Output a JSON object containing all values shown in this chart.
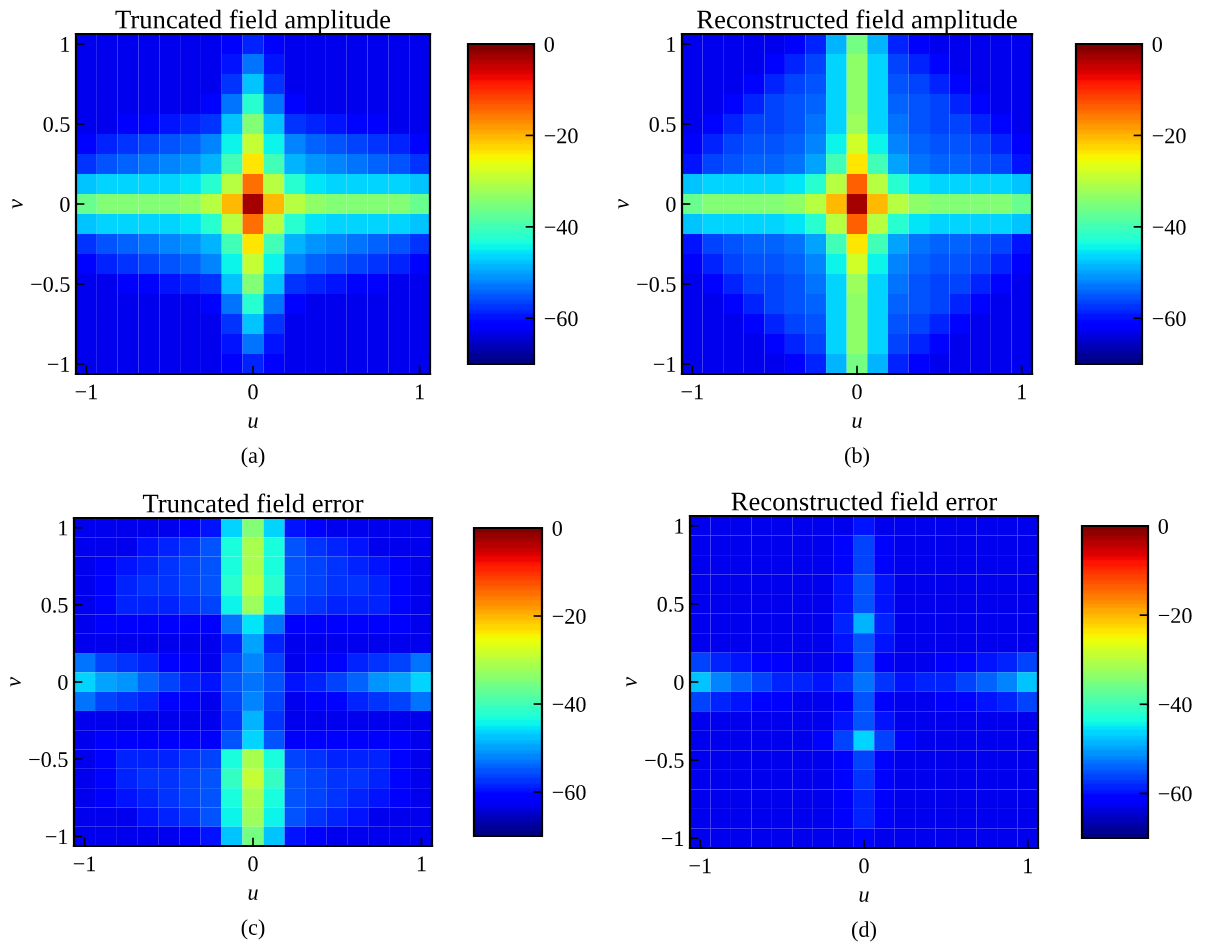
{
  "chart_data": [
    {
      "type": "heatmap",
      "title": "Truncated field amplitude",
      "xlabel": "u",
      "ylabel": "v",
      "annotations": [
        "(a)"
      ],
      "categories": [
        "−1",
        null,
        null,
        null,
        null,
        null,
        null,
        null,
        "0",
        null,
        null,
        null,
        null,
        null,
        null,
        null,
        "1"
      ],
      "y_categories": [
        "1",
        null,
        null,
        null,
        "0.5",
        null,
        null,
        null,
        "0",
        null,
        null,
        null,
        "−0.5",
        null,
        null,
        null,
        "−1"
      ],
      "clim": [
        -70,
        0
      ],
      "cticks": [
        0,
        -20,
        -40,
        -60
      ],
      "cells": [
        [
          -63,
          -63,
          -63,
          -63,
          -63,
          -63,
          -63,
          -62,
          -59,
          -62,
          -63,
          -63,
          -63,
          -63,
          -63,
          -63,
          -63
        ],
        [
          -63,
          -63,
          -63,
          -63,
          -63,
          -63,
          -63,
          -60,
          -53,
          -60,
          -63,
          -63,
          -63,
          -63,
          -63,
          -63,
          -63
        ],
        [
          -63,
          -63,
          -63,
          -63,
          -63,
          -63,
          -63,
          -57,
          -48,
          -57,
          -63,
          -63,
          -63,
          -63,
          -63,
          -63,
          -63
        ],
        [
          -63,
          -63,
          -63,
          -63,
          -63,
          -63,
          -61,
          -53,
          -42,
          -53,
          -61,
          -63,
          -63,
          -63,
          -63,
          -63,
          -63
        ],
        [
          -63,
          -63,
          -62,
          -61,
          -60,
          -59,
          -57,
          -48,
          -34,
          -48,
          -57,
          -59,
          -60,
          -61,
          -62,
          -63,
          -63
        ],
        [
          -61,
          -59,
          -57,
          -56,
          -55,
          -54,
          -52,
          -44,
          -29,
          -44,
          -52,
          -54,
          -55,
          -56,
          -57,
          -59,
          -61
        ],
        [
          -57,
          -55,
          -54,
          -53,
          -52,
          -51,
          -49,
          -40,
          -24,
          -40,
          -49,
          -51,
          -52,
          -53,
          -54,
          -55,
          -57
        ],
        [
          -48,
          -47,
          -47,
          -46,
          -46,
          -45,
          -42,
          -30,
          -15,
          -30,
          -42,
          -45,
          -46,
          -46,
          -47,
          -47,
          -48
        ],
        [
          -37,
          -35,
          -35,
          -35,
          -34,
          -33,
          -30,
          -20,
          -3,
          -20,
          -30,
          -33,
          -34,
          -35,
          -35,
          -35,
          -37
        ],
        [
          -48,
          -47,
          -47,
          -46,
          -46,
          -45,
          -42,
          -30,
          -15,
          -30,
          -42,
          -45,
          -46,
          -46,
          -47,
          -47,
          -48
        ],
        [
          -57,
          -55,
          -54,
          -53,
          -52,
          -51,
          -49,
          -40,
          -24,
          -40,
          -49,
          -51,
          -52,
          -53,
          -54,
          -55,
          -57
        ],
        [
          -61,
          -59,
          -57,
          -56,
          -55,
          -54,
          -52,
          -44,
          -29,
          -44,
          -52,
          -54,
          -55,
          -56,
          -57,
          -59,
          -61
        ],
        [
          -63,
          -63,
          -62,
          -61,
          -60,
          -59,
          -57,
          -48,
          -34,
          -48,
          -57,
          -59,
          -60,
          -61,
          -62,
          -63,
          -63
        ],
        [
          -63,
          -63,
          -63,
          -63,
          -63,
          -63,
          -61,
          -53,
          -42,
          -53,
          -61,
          -63,
          -63,
          -63,
          -63,
          -63,
          -63
        ],
        [
          -63,
          -63,
          -63,
          -63,
          -63,
          -63,
          -63,
          -57,
          -48,
          -57,
          -63,
          -63,
          -63,
          -63,
          -63,
          -63,
          -63
        ],
        [
          -63,
          -63,
          -63,
          -63,
          -63,
          -63,
          -63,
          -60,
          -53,
          -60,
          -63,
          -63,
          -63,
          -63,
          -63,
          -63,
          -63
        ],
        [
          -63,
          -63,
          -63,
          -63,
          -63,
          -63,
          -63,
          -62,
          -59,
          -62,
          -63,
          -63,
          -63,
          -63,
          -63,
          -63,
          -63
        ]
      ]
    },
    {
      "type": "heatmap",
      "title": "Reconstructed field amplitude",
      "xlabel": "u",
      "ylabel": "v",
      "annotations": [
        "(b)"
      ],
      "categories": [
        "−1",
        null,
        null,
        null,
        null,
        null,
        null,
        null,
        "0",
        null,
        null,
        null,
        null,
        null,
        null,
        null,
        "1"
      ],
      "y_categories": [
        "1",
        null,
        null,
        null,
        "0.5",
        null,
        null,
        null,
        "0",
        null,
        null,
        null,
        "−0.5",
        null,
        null,
        null,
        "−1"
      ],
      "clim": [
        -70,
        0
      ],
      "cticks": [
        0,
        -20,
        -40,
        -60
      ],
      "cells": [
        [
          -63,
          -63,
          -63,
          -63,
          -63,
          -62,
          -59,
          -49,
          -36,
          -49,
          -59,
          -62,
          -63,
          -63,
          -63,
          -63,
          -63
        ],
        [
          -63,
          -63,
          -63,
          -63,
          -61,
          -58,
          -56,
          -47,
          -33,
          -47,
          -56,
          -58,
          -61,
          -63,
          -63,
          -63,
          -63
        ],
        [
          -63,
          -63,
          -63,
          -61,
          -58,
          -56,
          -55,
          -47,
          -33,
          -47,
          -55,
          -56,
          -58,
          -61,
          -63,
          -63,
          -63
        ],
        [
          -63,
          -63,
          -61,
          -58,
          -56,
          -55,
          -54,
          -47,
          -33,
          -47,
          -54,
          -55,
          -56,
          -58,
          -61,
          -63,
          -63
        ],
        [
          -63,
          -61,
          -58,
          -56,
          -56,
          -55,
          -53,
          -46,
          -32,
          -46,
          -53,
          -55,
          -56,
          -56,
          -58,
          -61,
          -63
        ],
        [
          -62,
          -58,
          -56,
          -55,
          -55,
          -54,
          -52,
          -44,
          -28,
          -44,
          -52,
          -54,
          -55,
          -55,
          -56,
          -58,
          -62
        ],
        [
          -60,
          -56,
          -55,
          -54,
          -54,
          -53,
          -50,
          -40,
          -23,
          -40,
          -50,
          -53,
          -54,
          -54,
          -55,
          -56,
          -60
        ],
        [
          -48,
          -47,
          -47,
          -46,
          -46,
          -45,
          -42,
          -30,
          -14,
          -30,
          -42,
          -45,
          -46,
          -46,
          -47,
          -47,
          -48
        ],
        [
          -37,
          -35,
          -35,
          -35,
          -34,
          -33,
          -30,
          -20,
          -3,
          -20,
          -30,
          -33,
          -34,
          -35,
          -35,
          -35,
          -37
        ],
        [
          -48,
          -47,
          -47,
          -46,
          -46,
          -45,
          -42,
          -30,
          -14,
          -30,
          -42,
          -45,
          -46,
          -46,
          -47,
          -47,
          -48
        ],
        [
          -60,
          -56,
          -55,
          -54,
          -54,
          -53,
          -50,
          -40,
          -23,
          -40,
          -50,
          -53,
          -54,
          -54,
          -55,
          -56,
          -60
        ],
        [
          -62,
          -58,
          -56,
          -55,
          -55,
          -54,
          -52,
          -44,
          -28,
          -44,
          -52,
          -54,
          -55,
          -55,
          -56,
          -58,
          -62
        ],
        [
          -63,
          -61,
          -58,
          -56,
          -56,
          -55,
          -53,
          -46,
          -32,
          -46,
          -53,
          -55,
          -56,
          -56,
          -58,
          -61,
          -63
        ],
        [
          -63,
          -63,
          -61,
          -58,
          -56,
          -55,
          -54,
          -47,
          -33,
          -47,
          -54,
          -55,
          -56,
          -58,
          -61,
          -63,
          -63
        ],
        [
          -63,
          -63,
          -63,
          -61,
          -58,
          -56,
          -55,
          -47,
          -33,
          -47,
          -55,
          -56,
          -58,
          -61,
          -63,
          -63,
          -63
        ],
        [
          -63,
          -63,
          -63,
          -63,
          -61,
          -58,
          -56,
          -47,
          -33,
          -47,
          -56,
          -58,
          -61,
          -63,
          -63,
          -63,
          -63
        ],
        [
          -63,
          -63,
          -63,
          -63,
          -63,
          -62,
          -59,
          -49,
          -36,
          -49,
          -59,
          -62,
          -63,
          -63,
          -63,
          -63,
          -63
        ]
      ]
    },
    {
      "type": "heatmap",
      "title": "Truncated field error",
      "xlabel": "u",
      "ylabel": "v",
      "annotations": [
        "(c)"
      ],
      "categories": [
        "−1",
        null,
        null,
        null,
        null,
        null,
        null,
        null,
        "0",
        null,
        null,
        null,
        null,
        null,
        null,
        null,
        "1"
      ],
      "y_categories": [
        "1",
        null,
        null,
        null,
        "0.5",
        null,
        null,
        null,
        "0",
        null,
        null,
        null,
        "−0.5",
        null,
        null,
        null,
        "−1"
      ],
      "clim": [
        -70,
        0
      ],
      "cticks": [
        0,
        -20,
        -40,
        -60
      ],
      "cells": [
        [
          -63,
          -63,
          -63,
          -63,
          -63,
          -62,
          -60,
          -46,
          -34,
          -46,
          -60,
          -62,
          -63,
          -63,
          -63,
          -63,
          -63
        ],
        [
          -63,
          -63,
          -63,
          -60,
          -58,
          -57,
          -55,
          -43,
          -31,
          -43,
          -55,
          -57,
          -58,
          -60,
          -63,
          -63,
          -63
        ],
        [
          -63,
          -62,
          -60,
          -58,
          -57,
          -56,
          -55,
          -43,
          -31,
          -43,
          -55,
          -56,
          -57,
          -58,
          -60,
          -62,
          -63
        ],
        [
          -63,
          -61,
          -59,
          -57,
          -57,
          -56,
          -55,
          -42,
          -30,
          -42,
          -55,
          -56,
          -57,
          -57,
          -59,
          -61,
          -63
        ],
        [
          -63,
          -61,
          -59,
          -58,
          -58,
          -57,
          -56,
          -44,
          -32,
          -44,
          -56,
          -57,
          -58,
          -58,
          -59,
          -61,
          -63
        ],
        [
          -63,
          -62,
          -62,
          -62,
          -62,
          -62,
          -62,
          -53,
          -45,
          -53,
          -62,
          -62,
          -62,
          -62,
          -62,
          -62,
          -63
        ],
        [
          -63,
          -63,
          -63,
          -63,
          -63,
          -63,
          -63,
          -58,
          -50,
          -58,
          -63,
          -63,
          -63,
          -63,
          -63,
          -63,
          -63
        ],
        [
          -53,
          -56,
          -57,
          -59,
          -61,
          -62,
          -63,
          -56,
          -52,
          -56,
          -63,
          -62,
          -61,
          -59,
          -57,
          -56,
          -53
        ],
        [
          -46,
          -50,
          -51,
          -54,
          -56,
          -58,
          -60,
          -55,
          -53,
          -55,
          -60,
          -58,
          -56,
          -54,
          -51,
          -50,
          -46
        ],
        [
          -53,
          -56,
          -57,
          -59,
          -61,
          -62,
          -63,
          -56,
          -52,
          -56,
          -63,
          -62,
          -61,
          -59,
          -57,
          -56,
          -53
        ],
        [
          -63,
          -63,
          -63,
          -63,
          -63,
          -63,
          -63,
          -57,
          -49,
          -57,
          -63,
          -63,
          -63,
          -63,
          -63,
          -63,
          -63
        ],
        [
          -63,
          -62,
          -62,
          -62,
          -62,
          -62,
          -62,
          -55,
          -47,
          -55,
          -62,
          -62,
          -62,
          -62,
          -62,
          -62,
          -63
        ],
        [
          -63,
          -61,
          -59,
          -58,
          -58,
          -57,
          -56,
          -43,
          -31,
          -43,
          -56,
          -57,
          -58,
          -58,
          -59,
          -61,
          -63
        ],
        [
          -63,
          -61,
          -59,
          -57,
          -57,
          -56,
          -55,
          -41,
          -29,
          -41,
          -55,
          -56,
          -57,
          -57,
          -59,
          -61,
          -63
        ],
        [
          -63,
          -62,
          -60,
          -58,
          -57,
          -56,
          -55,
          -43,
          -31,
          -43,
          -55,
          -56,
          -57,
          -58,
          -60,
          -62,
          -63
        ],
        [
          -63,
          -63,
          -63,
          -60,
          -58,
          -57,
          -55,
          -44,
          -32,
          -44,
          -55,
          -57,
          -58,
          -60,
          -63,
          -63,
          -63
        ],
        [
          -63,
          -63,
          -63,
          -63,
          -63,
          -62,
          -60,
          -48,
          -36,
          -48,
          -60,
          -62,
          -63,
          -63,
          -63,
          -63,
          -63
        ]
      ]
    },
    {
      "type": "heatmap",
      "title": "Reconstructed field error",
      "xlabel": "u",
      "ylabel": "v",
      "annotations": [
        "(d)"
      ],
      "categories": [
        "−1",
        null,
        null,
        null,
        null,
        null,
        null,
        null,
        "0",
        null,
        null,
        null,
        null,
        null,
        null,
        null,
        "1"
      ],
      "y_categories": [
        "1",
        null,
        null,
        null,
        "0.5",
        null,
        null,
        null,
        "0",
        null,
        null,
        null,
        "−0.5",
        null,
        null,
        null,
        "−1"
      ],
      "clim": [
        -70,
        0
      ],
      "cticks": [
        0,
        -20,
        -40,
        -60
      ],
      "cells": [
        [
          -63,
          -63,
          -63,
          -63,
          -63,
          -63,
          -63,
          -63,
          -60,
          -63,
          -63,
          -63,
          -63,
          -63,
          -63,
          -63,
          -63
        ],
        [
          -63,
          -63,
          -63,
          -63,
          -63,
          -63,
          -63,
          -61,
          -56,
          -61,
          -63,
          -63,
          -63,
          -63,
          -63,
          -63,
          -63
        ],
        [
          -63,
          -63,
          -63,
          -63,
          -63,
          -63,
          -63,
          -61,
          -56,
          -61,
          -63,
          -63,
          -63,
          -63,
          -63,
          -63,
          -63
        ],
        [
          -63,
          -63,
          -63,
          -63,
          -63,
          -63,
          -63,
          -60,
          -55,
          -60,
          -63,
          -63,
          -63,
          -63,
          -63,
          -63,
          -63
        ],
        [
          -63,
          -63,
          -63,
          -63,
          -63,
          -63,
          -63,
          -60,
          -55,
          -60,
          -63,
          -63,
          -63,
          -63,
          -63,
          -63,
          -63
        ],
        [
          -63,
          -63,
          -63,
          -63,
          -63,
          -63,
          -63,
          -58,
          -49,
          -58,
          -63,
          -63,
          -63,
          -63,
          -63,
          -63,
          -63
        ],
        [
          -63,
          -63,
          -63,
          -63,
          -63,
          -63,
          -63,
          -60,
          -55,
          -60,
          -63,
          -63,
          -63,
          -63,
          -63,
          -63,
          -63
        ],
        [
          -56,
          -58,
          -60,
          -61,
          -62,
          -63,
          -63,
          -62,
          -55,
          -62,
          -63,
          -63,
          -62,
          -61,
          -60,
          -58,
          -56
        ],
        [
          -48,
          -52,
          -54,
          -56,
          -58,
          -59,
          -60,
          -57,
          -53,
          -57,
          -60,
          -59,
          -58,
          -56,
          -54,
          -52,
          -48
        ],
        [
          -56,
          -58,
          -60,
          -61,
          -62,
          -63,
          -63,
          -62,
          -55,
          -62,
          -63,
          -63,
          -62,
          -61,
          -60,
          -58,
          -56
        ],
        [
          -63,
          -63,
          -63,
          -63,
          -63,
          -63,
          -63,
          -60,
          -55,
          -60,
          -63,
          -63,
          -63,
          -63,
          -63,
          -63,
          -63
        ],
        [
          -63,
          -63,
          -63,
          -63,
          -63,
          -63,
          -61,
          -56,
          -47,
          -56,
          -61,
          -63,
          -63,
          -63,
          -63,
          -63,
          -63
        ],
        [
          -63,
          -63,
          -63,
          -63,
          -63,
          -63,
          -63,
          -61,
          -56,
          -61,
          -63,
          -63,
          -63,
          -63,
          -63,
          -63,
          -63
        ],
        [
          -63,
          -63,
          -63,
          -63,
          -63,
          -63,
          -63,
          -61,
          -57,
          -61,
          -63,
          -63,
          -63,
          -63,
          -63,
          -63,
          -63
        ],
        [
          -63,
          -63,
          -63,
          -63,
          -63,
          -63,
          -63,
          -62,
          -58,
          -62,
          -63,
          -63,
          -63,
          -63,
          -63,
          -63,
          -63
        ],
        [
          -63,
          -63,
          -63,
          -63,
          -63,
          -63,
          -63,
          -62,
          -58,
          -62,
          -63,
          -63,
          -63,
          -63,
          -63,
          -63,
          -63
        ],
        [
          -63,
          -63,
          -63,
          -63,
          -63,
          -63,
          -63,
          -63,
          -61,
          -63,
          -63,
          -63,
          -63,
          -63,
          -63,
          -63,
          -63
        ]
      ]
    }
  ]
}
